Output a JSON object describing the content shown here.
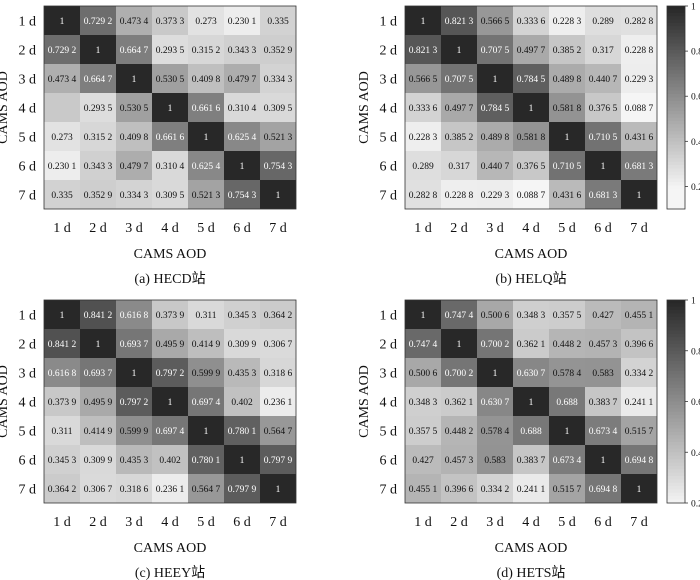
{
  "chart_data": [
    {
      "type": "heatmap",
      "caption": "(a) HECD站",
      "xlabel": "CAMS AOD",
      "ylabel": "CAMS AOD",
      "categories": [
        "1 d",
        "2 d",
        "3 d",
        "4 d",
        "5 d",
        "6 d",
        "7 d"
      ],
      "value_labels": [
        [
          "1",
          "0.729 2",
          "0.473 4",
          "0.373 3",
          "0.273",
          "0.230 1",
          "0.335"
        ],
        [
          "0.729 2",
          "1",
          "0.664 7",
          "0.293 5",
          "0.315 2",
          "0.343 3",
          "0.352 9"
        ],
        [
          "0.473 4",
          "0.664 7",
          "1",
          "0.530 5",
          "0.409 8",
          "0.479 7",
          "0.334 3"
        ],
        [
          "",
          "0.293 5",
          "0.530 5",
          "1",
          "0.661 6",
          "0.310 4",
          "0.309 5"
        ],
        [
          "0.273",
          "0.315 2",
          "0.409 8",
          "0.661 6",
          "1",
          "0.625 4",
          "0.521 3"
        ],
        [
          "0.230 1",
          "0.343 3",
          "0.479 7",
          "0.310 4",
          "0.625 4",
          "1",
          "0.754 3"
        ],
        [
          "0.335",
          "0.352 9",
          "0.334 3",
          "0.309 5",
          "0.521 3",
          "0.754 3",
          "1"
        ]
      ],
      "values": [
        [
          1,
          0.7292,
          0.4734,
          0.3733,
          0.273,
          0.2301,
          0.335
        ],
        [
          0.7292,
          1,
          0.6647,
          0.2935,
          0.3152,
          0.3433,
          0.3529
        ],
        [
          0.4734,
          0.6647,
          1,
          0.5305,
          0.4098,
          0.4797,
          0.3343
        ],
        [
          0.3733,
          0.2935,
          0.5305,
          1,
          0.6616,
          0.3104,
          0.3095
        ],
        [
          0.273,
          0.3152,
          0.4098,
          0.6616,
          1,
          0.6254,
          0.5213
        ],
        [
          0.2301,
          0.3433,
          0.4797,
          0.3104,
          0.6254,
          1,
          0.7543
        ],
        [
          0.335,
          0.3529,
          0.3343,
          0.3095,
          0.5213,
          0.7543,
          1
        ]
      ],
      "colorbar": null
    },
    {
      "type": "heatmap",
      "caption": "(b) HELQ站",
      "xlabel": "CAMS AOD",
      "ylabel": "CAMS AOD",
      "categories": [
        "1 d",
        "2 d",
        "3 d",
        "4 d",
        "5 d",
        "6 d",
        "7 d"
      ],
      "value_labels": [
        [
          "1",
          "0.821 3",
          "0.566 5",
          "0.333 6",
          "0.228 3",
          "0.289",
          "0.282 8"
        ],
        [
          "0.821 3",
          "1",
          "0.707 5",
          "0.497 7",
          "0.385 2",
          "0.317",
          "0.228 8"
        ],
        [
          "0.566 5",
          "0.707 5",
          "1",
          "0.784 5",
          "0.489 8",
          "0.440 7",
          "0.229 3"
        ],
        [
          "0.333 6",
          "0.497 7",
          "0.784 5",
          "1",
          "0.581 8",
          "0.376 5",
          "0.088 7"
        ],
        [
          "0.228 3",
          "0.385 2",
          "0.489 8",
          "0.581 8",
          "1",
          "0.710 5",
          "0.431 6"
        ],
        [
          "0.289",
          "0.317",
          "0.440 7",
          "0.376 5",
          "0.710 5",
          "1",
          "0.681 3"
        ],
        [
          "0.282 8",
          "0.228 8",
          "0.229 3",
          "0.088 7",
          "0.431 6",
          "0.681 3",
          "1"
        ]
      ],
      "values": [
        [
          1,
          0.8213,
          0.5665,
          0.3336,
          0.2283,
          0.289,
          0.2828
        ],
        [
          0.8213,
          1,
          0.7075,
          0.4977,
          0.3852,
          0.317,
          0.2288
        ],
        [
          0.5665,
          0.7075,
          1,
          0.7845,
          0.4898,
          0.4407,
          0.2293
        ],
        [
          0.3336,
          0.4977,
          0.7845,
          1,
          0.5818,
          0.3765,
          0.0887
        ],
        [
          0.2283,
          0.3852,
          0.4898,
          0.5818,
          1,
          0.7105,
          0.4316
        ],
        [
          0.289,
          0.317,
          0.4407,
          0.3765,
          0.7105,
          1,
          0.6813
        ],
        [
          0.2828,
          0.2288,
          0.2293,
          0.0887,
          0.4316,
          0.6813,
          1
        ]
      ],
      "colorbar": {
        "ticks": [
          "1",
          "0.8",
          "0.6",
          "0.4",
          "0.2"
        ],
        "range": [
          0.1,
          1.0
        ]
      }
    },
    {
      "type": "heatmap",
      "caption": "(c) HEEY站",
      "xlabel": "CAMS AOD",
      "ylabel": "CAMS AOD",
      "categories": [
        "1 d",
        "2 d",
        "3 d",
        "4 d",
        "5 d",
        "6 d",
        "7 d"
      ],
      "value_labels": [
        [
          "1",
          "0.841 2",
          "0.616 8",
          "0.373 9",
          "0.311",
          "0.345 3",
          "0.364 2"
        ],
        [
          "0.841 2",
          "1",
          "0.693 7",
          "0.495 9",
          "0.414 9",
          "0.309 9",
          "0.306 7"
        ],
        [
          "0.616 8",
          "0.693 7",
          "1",
          "0.797 2",
          "0.599 9",
          "0.435 3",
          "0.318 6"
        ],
        [
          "0.373 9",
          "0.495 9",
          "0.797 2",
          "1",
          "0.697 4",
          "0.402",
          "0.236 1"
        ],
        [
          "0.311",
          "0.414 9",
          "0.599 9",
          "0.697 4",
          "1",
          "0.780 1",
          "0.564 7"
        ],
        [
          "0.345 3",
          "0.309 9",
          "0.435 3",
          "0.402",
          "0.780 1",
          "1",
          "0.797 9"
        ],
        [
          "0.364 2",
          "0.306 7",
          "0.318 6",
          "0.236 1",
          "0.564 7",
          "0.797 9",
          "1"
        ]
      ],
      "values": [
        [
          1,
          0.8412,
          0.6168,
          0.3739,
          0.311,
          0.3453,
          0.3642
        ],
        [
          0.8412,
          1,
          0.6937,
          0.4959,
          0.4149,
          0.3099,
          0.3067
        ],
        [
          0.6168,
          0.6937,
          1,
          0.7972,
          0.5999,
          0.4353,
          0.3186
        ],
        [
          0.3739,
          0.4959,
          0.7972,
          1,
          0.6974,
          0.402,
          0.2361
        ],
        [
          0.311,
          0.4149,
          0.5999,
          0.6974,
          1,
          0.7801,
          0.5647
        ],
        [
          0.3453,
          0.3099,
          0.4353,
          0.402,
          0.7801,
          1,
          0.7979
        ],
        [
          0.3642,
          0.3067,
          0.3186,
          0.2361,
          0.5647,
          0.7979,
          1
        ]
      ],
      "colorbar": null
    },
    {
      "type": "heatmap",
      "caption": "(d) HETS站",
      "xlabel": "CAMS AOD",
      "ylabel": "CAMS AOD",
      "categories": [
        "1 d",
        "2 d",
        "3 d",
        "4 d",
        "5 d",
        "6 d",
        "7 d"
      ],
      "value_labels": [
        [
          "1",
          "0.747 4",
          "0.500 6",
          "0.348 3",
          "0.357 5",
          "0.427",
          "0.455 1"
        ],
        [
          "0.747 4",
          "1",
          "0.700 2",
          "0.362 1",
          "0.448 2",
          "0.457 3",
          "0.396 6"
        ],
        [
          "0.500 6",
          "0.700 2",
          "1",
          "0.630 7",
          "0.578 4",
          "0.583",
          "0.334 2"
        ],
        [
          "0.348 3",
          "0.362 1",
          "0.630 7",
          "1",
          "0.688",
          "0.383 7",
          "0.241 1"
        ],
        [
          "0.357 5",
          "0.448 2",
          "0.578 4",
          "0.688",
          "1",
          "0.673 4",
          "0.515 7"
        ],
        [
          "0.427",
          "0.457 3",
          "0.583",
          "0.383 7",
          "0.673 4",
          "1",
          "0.694 8"
        ],
        [
          "0.455 1",
          "0.396 6",
          "0.334 2",
          "0.241 1",
          "0.515 7",
          "0.694 8",
          "1"
        ]
      ],
      "values": [
        [
          1,
          0.7474,
          0.5006,
          0.3483,
          0.3575,
          0.427,
          0.4551
        ],
        [
          0.7474,
          1,
          0.7002,
          0.3621,
          0.4482,
          0.4573,
          0.3966
        ],
        [
          0.5006,
          0.7002,
          1,
          0.6307,
          0.5784,
          0.583,
          0.3342
        ],
        [
          0.3483,
          0.3621,
          0.6307,
          1,
          0.688,
          0.3837,
          0.2411
        ],
        [
          0.3575,
          0.4482,
          0.5784,
          0.688,
          1,
          0.6734,
          0.5157
        ],
        [
          0.427,
          0.4573,
          0.583,
          0.3837,
          0.6734,
          1,
          0.6948
        ],
        [
          0.4551,
          0.3966,
          0.3342,
          0.2411,
          0.5157,
          0.6948,
          1
        ]
      ],
      "colorbar": {
        "ticks": [
          "1",
          "0.8",
          "0.6",
          "0.4",
          "0.2"
        ],
        "range": [
          0.2,
          1.0
        ]
      }
    }
  ]
}
